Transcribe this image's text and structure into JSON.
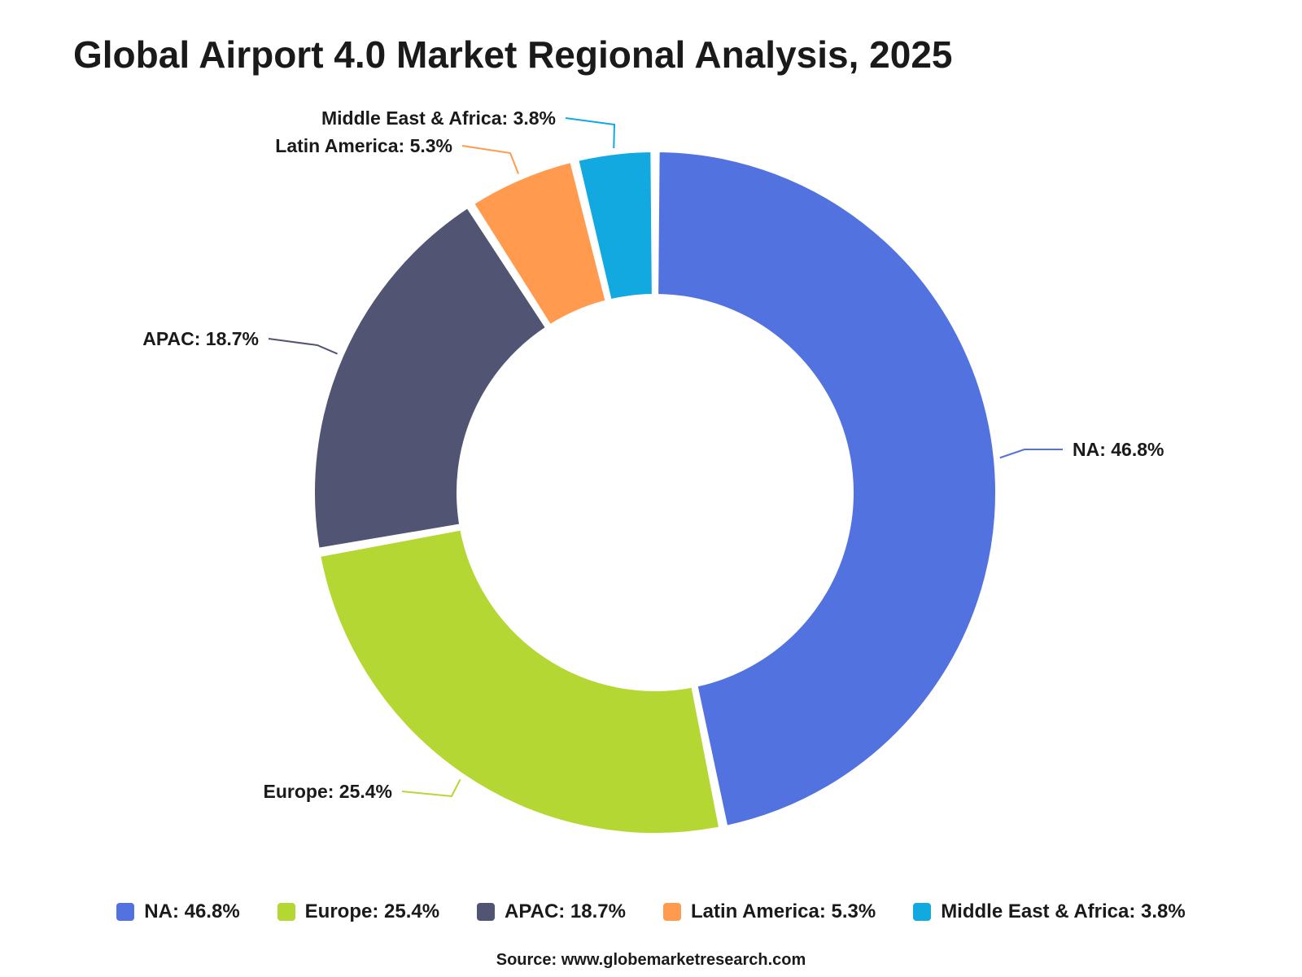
{
  "title": "Global Airport 4.0 Market Regional Analysis, 2025",
  "source": "Source: www.globemarketresearch.com",
  "chart_data": {
    "type": "pie",
    "variant": "donut",
    "title": "Global Airport 4.0 Market Regional Analysis, 2025",
    "unit": "%",
    "legend_position": "bottom",
    "slices": [
      {
        "label": "NA",
        "value": 46.8,
        "display": "NA: 46.8%",
        "color": "#5272DF"
      },
      {
        "label": "Europe",
        "value": 25.4,
        "display": "Europe: 25.4%",
        "color": "#B5D733"
      },
      {
        "label": "APAC",
        "value": 18.7,
        "display": "APAC: 18.7%",
        "color": "#515472"
      },
      {
        "label": "Latin America",
        "value": 5.3,
        "display": "Latin America: 5.3%",
        "color": "#FF9A4E"
      },
      {
        "label": "Middle East & Africa",
        "value": 3.8,
        "display": "Middle East & Africa: 3.8%",
        "color": "#12A8E0"
      }
    ]
  }
}
